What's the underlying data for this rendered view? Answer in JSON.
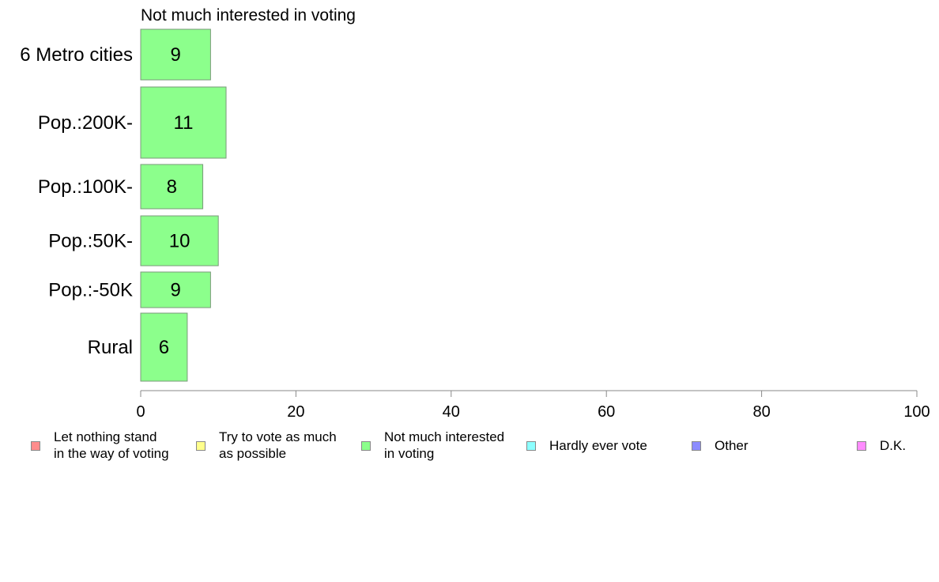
{
  "chart_data": {
    "type": "bar",
    "orientation": "horizontal",
    "title": "Not much interested in voting",
    "categories": [
      "6 Metro cities",
      "Pop.:200K-",
      "Pop.:100K-",
      "Pop.:50K-",
      "Pop.:-50K",
      "Rural"
    ],
    "values": [
      9,
      11,
      8,
      10,
      9,
      6
    ],
    "bar_color": "#8cff8c",
    "xlim": [
      0,
      100
    ],
    "xticks": [
      "0",
      "20",
      "40",
      "60",
      "80",
      "100"
    ],
    "grid": false,
    "legend_placement": "bottom",
    "legend": [
      {
        "lines": [
          "Let nothing stand",
          "in the way of voting"
        ],
        "color": "#ff8c8c"
      },
      {
        "lines": [
          "Try to vote as much",
          "as possible"
        ],
        "color": "#ffff8c"
      },
      {
        "lines": [
          "Not much interested",
          "in voting"
        ],
        "color": "#8cff8c"
      },
      {
        "lines": [
          "Hardly ever vote"
        ],
        "color": "#8cffff"
      },
      {
        "lines": [
          "Other"
        ],
        "color": "#8c8cff"
      },
      {
        "lines": [
          "D.K."
        ],
        "color": "#ff8cff"
      }
    ]
  }
}
